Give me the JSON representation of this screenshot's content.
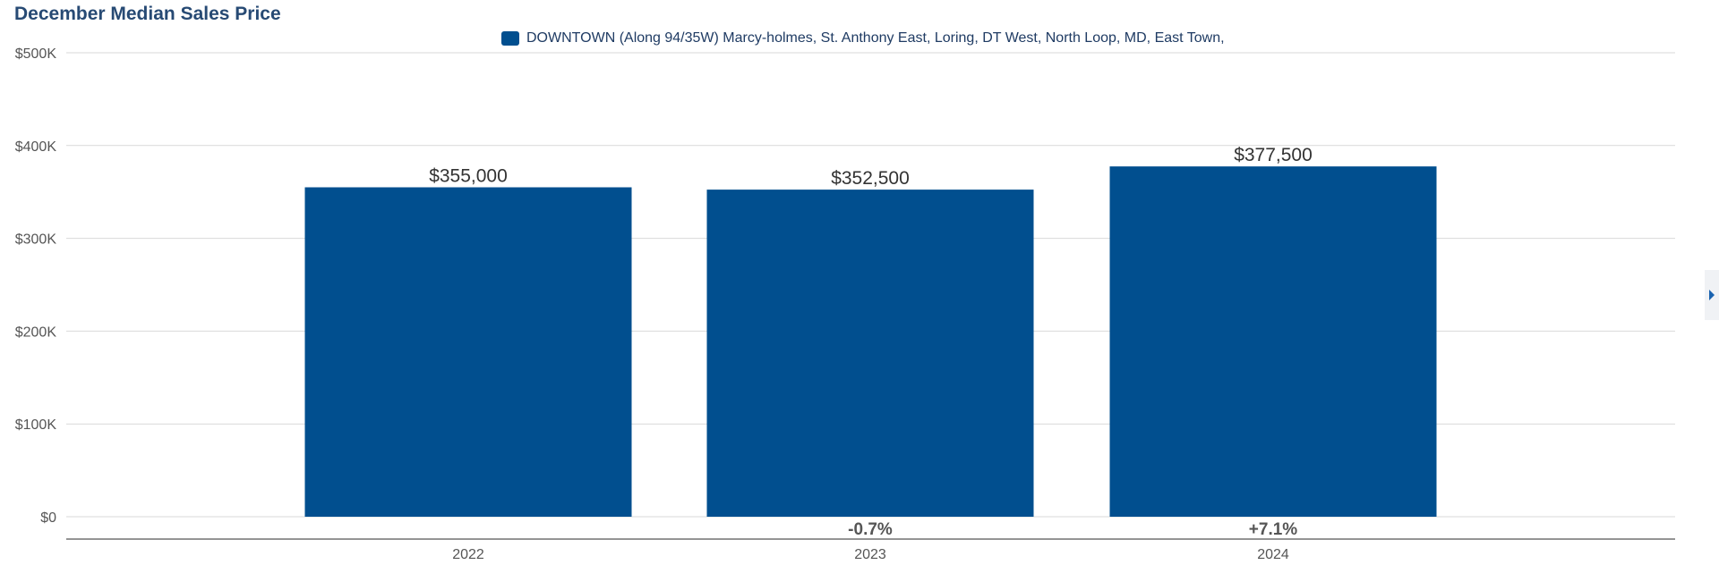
{
  "chart_data": {
    "type": "bar",
    "title": "December Median Sales Price",
    "legend": {
      "label": "DOWNTOWN (Along 94/35W) Marcy-holmes, St. Anthony East, Loring, DT West, North Loop, MD, East Town,",
      "position": "top-center"
    },
    "categories": [
      "2022",
      "2023",
      "2024"
    ],
    "series": [
      {
        "name": "DOWNTOWN (Along 94/35W) Marcy-holmes, St. Anthony East, Loring, DT West, North Loop, MD, East Town,",
        "values": [
          355000,
          352500,
          377500
        ],
        "color": "#014f8f"
      }
    ],
    "value_labels": [
      "$355,000",
      "$352,500",
      "$377,500"
    ],
    "change_labels": [
      "",
      "-0.7%",
      "+7.1%"
    ],
    "yticks": [
      0,
      100000,
      200000,
      300000,
      400000,
      500000
    ],
    "ytick_labels": [
      "$0",
      "$100K",
      "$200K",
      "$300K",
      "$400K",
      "$500K"
    ],
    "ylim": [
      0,
      500000
    ],
    "grid": true,
    "xlabel": "",
    "ylabel": ""
  },
  "colors": {
    "title": "#274a74",
    "bar": "#014f8f",
    "grid": "#d9d9d9",
    "axis": "#707070",
    "tick_text": "#555555",
    "value_text": "#333333",
    "change_text": "#555555"
  },
  "icons": {
    "scroll_arrow": "caret-right-icon"
  }
}
